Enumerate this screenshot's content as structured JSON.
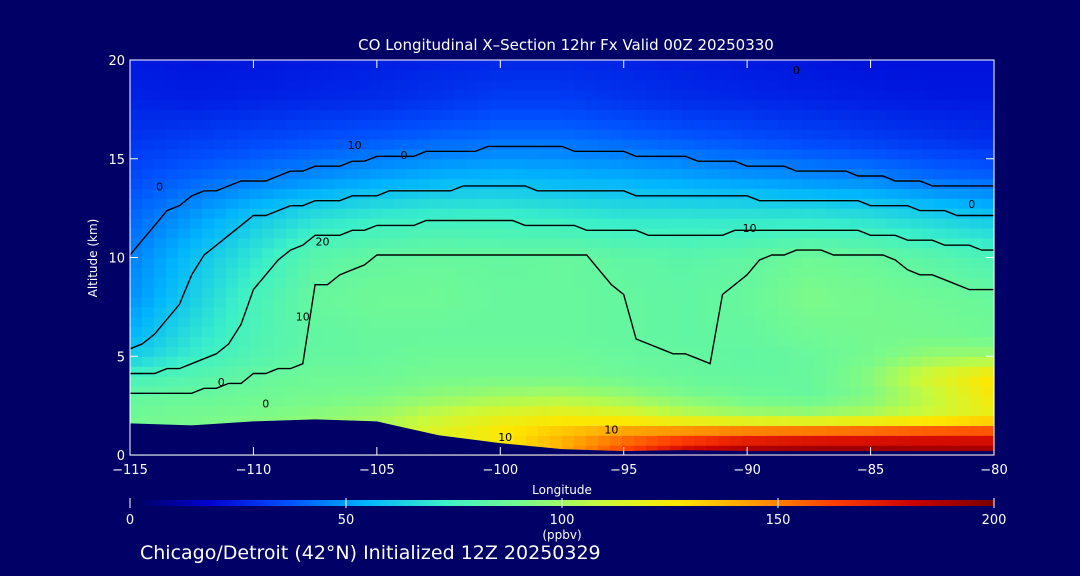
{
  "chart_data": {
    "type": "heatmap",
    "title": "CO Longitudinal X–Section 12hr  Fx Valid 00Z 20250330",
    "xlabel": "Longitude",
    "ylabel": "Altitude (km)",
    "xlim": [
      -115,
      -80
    ],
    "ylim": [
      0,
      20
    ],
    "x_ticks": [
      -115,
      -110,
      -105,
      -100,
      -95,
      -90,
      -85,
      -80
    ],
    "x_tick_labels": [
      "−115",
      "−110",
      "−105",
      "−100",
      "−95",
      "−90",
      "−85",
      "−80"
    ],
    "y_ticks": [
      0,
      5,
      10,
      15,
      20
    ],
    "y_tick_labels": [
      "0",
      "5",
      "10",
      "15",
      "20"
    ],
    "colorbar": {
      "min": 0,
      "max": 200,
      "ticks": [
        0,
        50,
        100,
        150,
        200
      ],
      "tick_labels": [
        "0",
        "50",
        "100",
        "150",
        "200"
      ],
      "unit": "(ppbv)",
      "colors": [
        "#00005a",
        "#0000d0",
        "#0050ff",
        "#00b4ff",
        "#3cf0c8",
        "#78fa8c",
        "#c8fa3c",
        "#ffe600",
        "#ff9600",
        "#ff3c00",
        "#c80000",
        "#780000"
      ]
    },
    "lon_grid": [
      -115,
      -112.5,
      -110,
      -107.5,
      -105,
      -102.5,
      -100,
      -97.5,
      -95,
      -92.5,
      -90,
      -87.5,
      -85,
      -82.5,
      -80
    ],
    "alt_grid": [
      0,
      1,
      2,
      3,
      4,
      5,
      6,
      8,
      10,
      12,
      14,
      16,
      18,
      20
    ],
    "co_ppbv": [
      [
        88,
        90,
        92,
        94,
        96,
        105,
        118,
        140,
        165,
        185,
        195,
        198,
        198,
        196,
        195
      ],
      [
        90,
        92,
        95,
        98,
        105,
        118,
        128,
        138,
        150,
        158,
        165,
        168,
        170,
        172,
        172
      ],
      [
        88,
        90,
        92,
        95,
        100,
        110,
        118,
        122,
        118,
        108,
        102,
        100,
        105,
        112,
        120
      ],
      [
        85,
        86,
        88,
        90,
        92,
        96,
        100,
        102,
        98,
        92,
        88,
        86,
        92,
        108,
        125
      ],
      [
        75,
        80,
        85,
        88,
        88,
        90,
        90,
        90,
        88,
        86,
        85,
        86,
        95,
        115,
        128
      ],
      [
        62,
        72,
        80,
        85,
        86,
        88,
        88,
        88,
        86,
        85,
        84,
        86,
        90,
        98,
        100
      ],
      [
        55,
        68,
        78,
        84,
        86,
        86,
        86,
        86,
        85,
        84,
        85,
        88,
        90,
        90,
        88
      ],
      [
        48,
        62,
        76,
        86,
        88,
        88,
        86,
        86,
        85,
        84,
        86,
        92,
        90,
        88,
        86
      ],
      [
        45,
        58,
        70,
        82,
        85,
        86,
        85,
        86,
        84,
        82,
        84,
        88,
        86,
        82,
        78
      ],
      [
        40,
        50,
        60,
        68,
        72,
        74,
        74,
        72,
        70,
        70,
        70,
        70,
        68,
        64,
        60
      ],
      [
        35,
        40,
        44,
        48,
        52,
        55,
        56,
        55,
        54,
        52,
        50,
        48,
        46,
        42,
        40
      ],
      [
        30,
        32,
        34,
        36,
        38,
        40,
        42,
        42,
        40,
        38,
        36,
        34,
        32,
        30,
        28
      ],
      [
        26,
        25,
        26,
        27,
        28,
        30,
        32,
        32,
        30,
        28,
        27,
        26,
        25,
        24,
        24
      ],
      [
        24,
        23,
        23,
        24,
        25,
        26,
        27,
        27,
        26,
        25,
        24,
        23,
        22,
        22,
        22
      ]
    ],
    "terrain_km": [
      1.6,
      1.5,
      1.7,
      1.8,
      1.7,
      1.0,
      0.6,
      0.3,
      0.2,
      0.25,
      0.2,
      0.2,
      0.2,
      0.2,
      0.2
    ],
    "contour_labels": [
      {
        "text": "0",
        "lon": -113.8,
        "alt": 13.4
      },
      {
        "text": "0",
        "lon": -103.9,
        "alt": 15.0
      },
      {
        "text": "0",
        "lon": -80.9,
        "alt": 12.5
      },
      {
        "text": "0",
        "lon": -88.0,
        "alt": 19.3
      },
      {
        "text": "10",
        "lon": -105.9,
        "alt": 15.5
      },
      {
        "text": "10",
        "lon": -89.9,
        "alt": 11.3
      },
      {
        "text": "10",
        "lon": -108.0,
        "alt": 6.8
      },
      {
        "text": "10",
        "lon": -95.5,
        "alt": 1.1
      },
      {
        "text": "10",
        "lon": -99.8,
        "alt": 0.7
      },
      {
        "text": "20",
        "lon": -107.2,
        "alt": 10.6
      },
      {
        "text": "0",
        "lon": -111.3,
        "alt": 3.5
      },
      {
        "text": "0",
        "lon": -109.5,
        "alt": 2.4
      }
    ]
  },
  "footer": "Chicago/Detroit (42°N) Initialized 12Z 20250329"
}
